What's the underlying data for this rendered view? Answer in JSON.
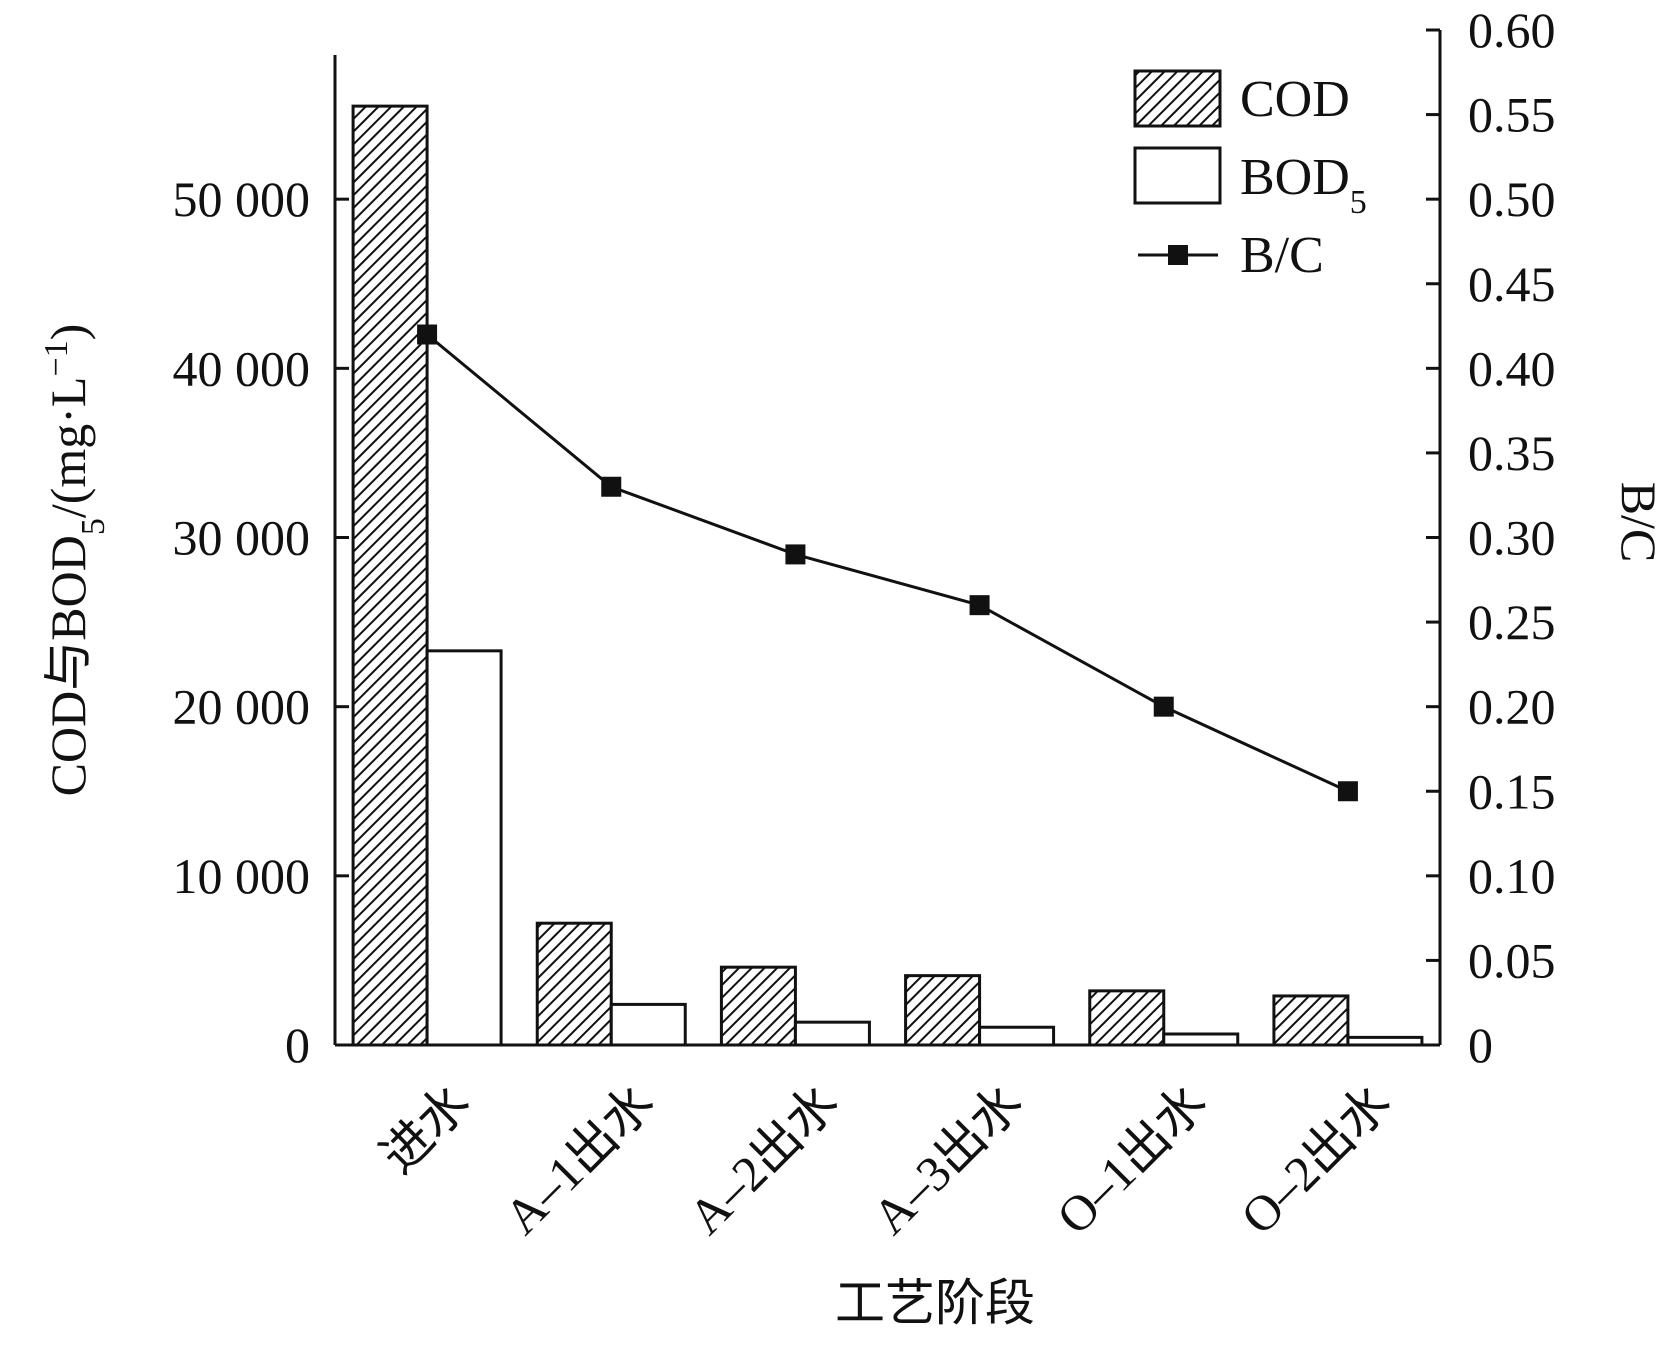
{
  "chart_data": {
    "type": "bar",
    "categories": [
      "进水",
      "A–1出水",
      "A–2出水",
      "A–3出水",
      "O–1出水",
      "O–2出水"
    ],
    "series": [
      {
        "name": "COD",
        "axis": "left",
        "kind": "bar",
        "fill": "hatch",
        "values": [
          55500,
          7200,
          4600,
          4100,
          3200,
          2900
        ]
      },
      {
        "name": "BOD5",
        "axis": "left",
        "kind": "bar",
        "fill": "white",
        "values": [
          23300,
          2400,
          1350,
          1050,
          650,
          450
        ]
      },
      {
        "name": "B/C",
        "axis": "right",
        "kind": "line",
        "marker": "square",
        "values": [
          0.42,
          0.33,
          0.29,
          0.26,
          0.2,
          0.15
        ]
      }
    ],
    "xlabel": "工艺阶段",
    "ylabel": {
      "main": "COD与BOD",
      "sub": "5",
      "rest": "/(mg·L",
      "sup": "−1",
      "close": ")"
    },
    "y2label": "B/C",
    "ylim": [
      0,
      60000
    ],
    "y2lim": [
      0,
      0.6
    ],
    "yticks": [
      0,
      10000,
      20000,
      30000,
      40000,
      50000
    ],
    "ytick_labels": [
      "0",
      "10 000",
      "20 000",
      "30 000",
      "40 000",
      "50 000"
    ],
    "y2ticks": [
      0,
      0.05,
      0.1,
      0.15,
      0.2,
      0.25,
      0.3,
      0.35,
      0.4,
      0.45,
      0.5,
      0.55,
      0.6
    ],
    "y2tick_labels": [
      "0",
      "0.05",
      "0.10",
      "0.15",
      "0.20",
      "0.25",
      "0.30",
      "0.35",
      "0.40",
      "0.45",
      "0.50",
      "0.55",
      "0.60"
    ],
    "legend": {
      "position": "top-right",
      "entries": [
        {
          "label": "COD"
        },
        {
          "label": "BOD",
          "sub": "5"
        },
        {
          "label": "B/C"
        }
      ]
    },
    "grid": false
  }
}
